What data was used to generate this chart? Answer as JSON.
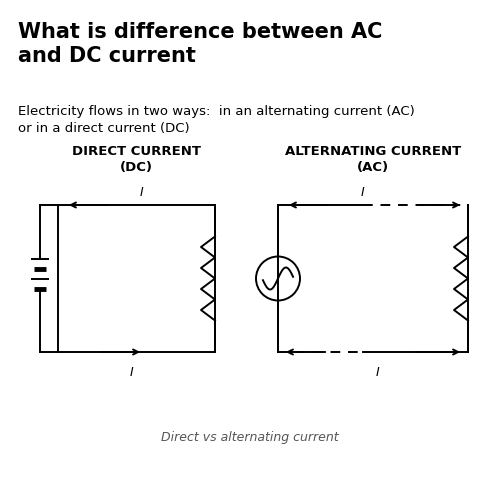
{
  "title": "What is difference between AC\nand DC current",
  "subtitle": "Electricity flows in two ways:  in an alternating current (AC)\nor in a direct current (DC)",
  "dc_label": "DIRECT CURRENT\n(DC)",
  "ac_label": "ALTERNATING CURRENT\n(AC)",
  "caption": "Direct vs alternating current",
  "bg_color": "#ffffff",
  "text_color": "#000000",
  "line_color": "#000000",
  "title_fontsize": 15,
  "subtitle_fontsize": 9.5,
  "label_fontsize": 9.5,
  "caption_fontsize": 9
}
